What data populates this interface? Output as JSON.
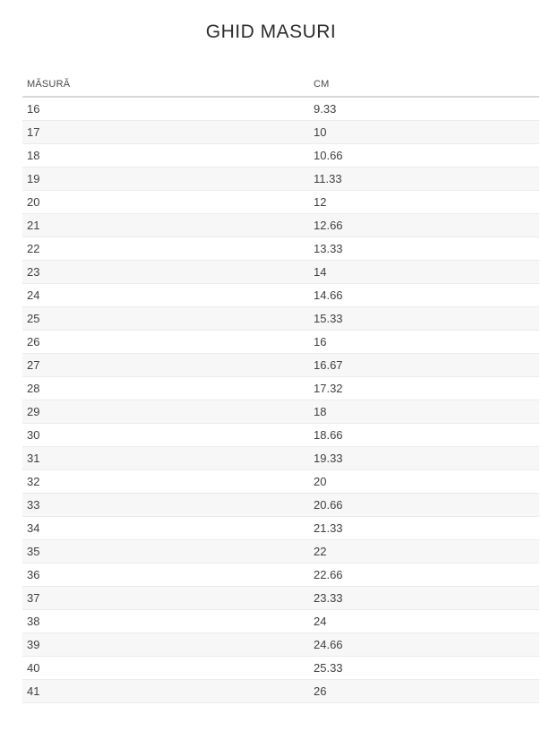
{
  "page": {
    "title": "GHID MASURI"
  },
  "colors": {
    "stripe": "#f7f7f7",
    "row_border": "#ebebeb",
    "header_border": "#d8d8d8",
    "title_color": "#2d2d2d",
    "header_text": "#4a4a4a",
    "cell_text": "#404040"
  },
  "table": {
    "columns": [
      "MĂSURĂ",
      "CM"
    ],
    "rows": [
      {
        "size": "16",
        "cm": "9.33"
      },
      {
        "size": "17",
        "cm": "10"
      },
      {
        "size": "18",
        "cm": "10.66"
      },
      {
        "size": "19",
        "cm": "11.33"
      },
      {
        "size": "20",
        "cm": "12"
      },
      {
        "size": "21",
        "cm": "12.66"
      },
      {
        "size": "22",
        "cm": "13.33"
      },
      {
        "size": "23",
        "cm": "14"
      },
      {
        "size": "24",
        "cm": "14.66"
      },
      {
        "size": "25",
        "cm": "15.33"
      },
      {
        "size": "26",
        "cm": "16"
      },
      {
        "size": "27",
        "cm": "16.67"
      },
      {
        "size": "28",
        "cm": "17.32"
      },
      {
        "size": "29",
        "cm": "18"
      },
      {
        "size": "30",
        "cm": "18.66"
      },
      {
        "size": "31",
        "cm": "19.33"
      },
      {
        "size": "32",
        "cm": "20"
      },
      {
        "size": "33",
        "cm": "20.66"
      },
      {
        "size": "34",
        "cm": "21.33"
      },
      {
        "size": "35",
        "cm": "22"
      },
      {
        "size": "36",
        "cm": "22.66"
      },
      {
        "size": "37",
        "cm": "23.33"
      },
      {
        "size": "38",
        "cm": "24"
      },
      {
        "size": "39",
        "cm": "24.66"
      },
      {
        "size": "40",
        "cm": "25.33"
      },
      {
        "size": "41",
        "cm": "26"
      }
    ]
  }
}
